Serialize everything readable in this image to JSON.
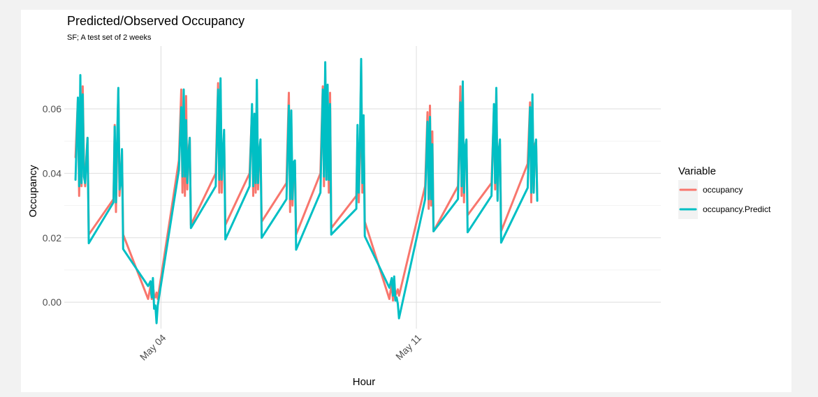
{
  "chart_data": {
    "type": "line",
    "title": "Predicted/Observed Occupancy",
    "subtitle": "SF; A test set of 2 weeks",
    "xlabel": "Hour",
    "ylabel": "Occupancy",
    "x_unit": "day of May",
    "xlim": [
      1.35,
      17.7
    ],
    "ylim": [
      -0.0082,
      0.0795
    ],
    "x_ticks": [
      {
        "value": 4,
        "label": "May 04"
      },
      {
        "value": 11,
        "label": "May 11"
      }
    ],
    "y_ticks": [
      {
        "value": 0.0,
        "label": "0.00"
      },
      {
        "value": 0.02,
        "label": "0.02"
      },
      {
        "value": 0.04,
        "label": "0.04"
      },
      {
        "value": 0.06,
        "label": "0.06"
      }
    ],
    "grid": true,
    "legend": {
      "title": "Variable",
      "position": "right"
    },
    "series": [
      {
        "name": "occupancy",
        "color": "#F8766D",
        "points": [
          [
            1.658,
            0.045
          ],
          [
            1.724,
            0.063
          ],
          [
            1.757,
            0.033
          ],
          [
            1.79,
            0.058
          ],
          [
            1.823,
            0.036
          ],
          [
            1.856,
            0.067
          ],
          [
            1.889,
            0.043
          ],
          [
            1.922,
            0.036
          ],
          [
            1.955,
            0.045
          ],
          [
            1.988,
            0.051
          ],
          [
            2.022,
            0.021
          ],
          [
            2.7,
            0.032
          ],
          [
            2.733,
            0.055
          ],
          [
            2.766,
            0.028
          ],
          [
            2.799,
            0.048
          ],
          [
            2.832,
            0.066
          ],
          [
            2.865,
            0.033
          ],
          [
            2.898,
            0.04
          ],
          [
            2.931,
            0.047
          ],
          [
            2.964,
            0.021
          ],
          [
            3.648,
            0.001
          ],
          [
            3.714,
            0.005
          ],
          [
            3.747,
            0.001
          ],
          [
            3.78,
            0.0055
          ],
          [
            3.813,
            0.002
          ],
          [
            3.846,
            0.0015
          ],
          [
            3.879,
            0.003
          ],
          [
            3.912,
            0.001
          ],
          [
            4.491,
            0.044
          ],
          [
            4.557,
            0.066
          ],
          [
            4.59,
            0.034
          ],
          [
            4.623,
            0.058
          ],
          [
            4.656,
            0.033
          ],
          [
            4.689,
            0.064
          ],
          [
            4.722,
            0.035
          ],
          [
            4.755,
            0.047
          ],
          [
            4.788,
            0.051
          ],
          [
            4.821,
            0.024
          ],
          [
            5.5,
            0.04
          ],
          [
            5.566,
            0.068
          ],
          [
            5.599,
            0.034
          ],
          [
            5.632,
            0.066
          ],
          [
            5.665,
            0.034
          ],
          [
            5.698,
            0.047
          ],
          [
            5.731,
            0.052
          ],
          [
            5.764,
            0.024
          ],
          [
            6.43,
            0.04
          ],
          [
            6.496,
            0.06
          ],
          [
            6.529,
            0.033
          ],
          [
            6.562,
            0.057
          ],
          [
            6.595,
            0.034
          ],
          [
            6.628,
            0.066
          ],
          [
            6.661,
            0.035
          ],
          [
            6.694,
            0.045
          ],
          [
            6.727,
            0.048
          ],
          [
            6.76,
            0.025
          ],
          [
            7.44,
            0.037
          ],
          [
            7.506,
            0.065
          ],
          [
            7.539,
            0.028
          ],
          [
            7.572,
            0.056
          ],
          [
            7.605,
            0.03
          ],
          [
            7.638,
            0.042
          ],
          [
            7.671,
            0.043
          ],
          [
            7.704,
            0.021
          ],
          [
            8.37,
            0.04
          ],
          [
            8.436,
            0.067
          ],
          [
            8.469,
            0.036
          ],
          [
            8.502,
            0.072
          ],
          [
            8.535,
            0.041
          ],
          [
            8.568,
            0.062
          ],
          [
            8.601,
            0.034
          ],
          [
            8.634,
            0.065
          ],
          [
            8.667,
            0.023
          ],
          [
            9.355,
            0.033
          ],
          [
            9.388,
            0.052
          ],
          [
            9.421,
            0.031
          ],
          [
            9.454,
            0.046
          ],
          [
            9.487,
            0.074
          ],
          [
            9.52,
            0.034
          ],
          [
            9.553,
            0.055
          ],
          [
            9.586,
            0.025
          ],
          [
            10.26,
            0.001
          ],
          [
            10.326,
            0.006
          ],
          [
            10.359,
            0.0005
          ],
          [
            10.392,
            0.0065
          ],
          [
            10.425,
            0.002
          ],
          [
            10.458,
            0.003
          ],
          [
            10.491,
            0.004
          ],
          [
            10.524,
            0.002
          ],
          [
            11.24,
            0.036
          ],
          [
            11.306,
            0.059
          ],
          [
            11.339,
            0.029
          ],
          [
            11.372,
            0.061
          ],
          [
            11.405,
            0.03
          ],
          [
            11.438,
            0.053
          ],
          [
            11.471,
            0.022
          ],
          [
            12.14,
            0.036
          ],
          [
            12.206,
            0.067
          ],
          [
            12.239,
            0.033
          ],
          [
            12.272,
            0.065
          ],
          [
            12.305,
            0.031
          ],
          [
            12.338,
            0.048
          ],
          [
            12.371,
            0.05
          ],
          [
            12.404,
            0.027
          ],
          [
            13.06,
            0.037
          ],
          [
            13.126,
            0.06
          ],
          [
            13.159,
            0.035
          ],
          [
            13.192,
            0.066
          ],
          [
            13.225,
            0.032
          ],
          [
            13.258,
            0.048
          ],
          [
            13.291,
            0.049
          ],
          [
            13.324,
            0.022
          ],
          [
            14.05,
            0.043
          ],
          [
            14.116,
            0.062
          ],
          [
            14.149,
            0.031
          ],
          [
            14.182,
            0.062
          ],
          [
            14.215,
            0.034
          ],
          [
            14.248,
            0.049
          ],
          [
            14.281,
            0.05
          ],
          [
            14.314,
            0.032
          ]
        ]
      },
      {
        "name": "occupancy.Predict",
        "color": "#00BFC4",
        "points": [
          [
            1.658,
            0.038
          ],
          [
            1.724,
            0.0635
          ],
          [
            1.757,
            0.036
          ],
          [
            1.79,
            0.0705
          ],
          [
            1.823,
            0.037
          ],
          [
            1.856,
            0.0645
          ],
          [
            1.889,
            0.039
          ],
          [
            1.922,
            0.037
          ],
          [
            1.955,
            0.044
          ],
          [
            1.988,
            0.051
          ],
          [
            2.022,
            0.0183
          ],
          [
            2.7,
            0.031
          ],
          [
            2.733,
            0.0545
          ],
          [
            2.766,
            0.031
          ],
          [
            2.799,
            0.0505
          ],
          [
            2.832,
            0.0665
          ],
          [
            2.865,
            0.035
          ],
          [
            2.898,
            0.037
          ],
          [
            2.931,
            0.0475
          ],
          [
            2.964,
            0.0165
          ],
          [
            3.648,
            0.005
          ],
          [
            3.714,
            0.0065
          ],
          [
            3.747,
            0.0015
          ],
          [
            3.78,
            0.0075
          ],
          [
            3.813,
            -0.002
          ],
          [
            3.846,
            -0.001
          ],
          [
            3.879,
            -0.0065
          ],
          [
            3.912,
            -0.001
          ],
          [
            4.491,
            0.041
          ],
          [
            4.557,
            0.0605
          ],
          [
            4.59,
            0.039
          ],
          [
            4.623,
            0.066
          ],
          [
            4.656,
            0.039
          ],
          [
            4.689,
            0.0565
          ],
          [
            4.722,
            0.037
          ],
          [
            4.755,
            0.046
          ],
          [
            4.788,
            0.051
          ],
          [
            4.821,
            0.023
          ],
          [
            5.5,
            0.036
          ],
          [
            5.566,
            0.066
          ],
          [
            5.599,
            0.038
          ],
          [
            5.632,
            0.0695
          ],
          [
            5.665,
            0.038
          ],
          [
            5.698,
            0.0465
          ],
          [
            5.731,
            0.0535
          ],
          [
            5.764,
            0.0195
          ],
          [
            6.43,
            0.036
          ],
          [
            6.496,
            0.0615
          ],
          [
            6.529,
            0.036
          ],
          [
            6.562,
            0.0585
          ],
          [
            6.595,
            0.037
          ],
          [
            6.628,
            0.069
          ],
          [
            6.661,
            0.037
          ],
          [
            6.694,
            0.0465
          ],
          [
            6.727,
            0.0505
          ],
          [
            6.76,
            0.02
          ],
          [
            7.44,
            0.032
          ],
          [
            7.506,
            0.061
          ],
          [
            7.539,
            0.032
          ],
          [
            7.572,
            0.0595
          ],
          [
            7.605,
            0.032
          ],
          [
            7.638,
            0.0435
          ],
          [
            7.671,
            0.044
          ],
          [
            7.704,
            0.0163
          ],
          [
            8.37,
            0.034
          ],
          [
            8.436,
            0.066
          ],
          [
            8.469,
            0.039
          ],
          [
            8.502,
            0.0745
          ],
          [
            8.535,
            0.038
          ],
          [
            8.568,
            0.0675
          ],
          [
            8.601,
            0.038
          ],
          [
            8.634,
            0.0615
          ],
          [
            8.667,
            0.021
          ],
          [
            9.355,
            0.029
          ],
          [
            9.388,
            0.055
          ],
          [
            9.421,
            0.034
          ],
          [
            9.454,
            0.0495
          ],
          [
            9.487,
            0.0755
          ],
          [
            9.52,
            0.037
          ],
          [
            9.553,
            0.058
          ],
          [
            9.586,
            0.0205
          ],
          [
            10.26,
            0.0045
          ],
          [
            10.326,
            0.0075
          ],
          [
            10.359,
            0.002
          ],
          [
            10.392,
            0.008
          ],
          [
            10.425,
            0.0005
          ],
          [
            10.458,
            0.0015
          ],
          [
            10.491,
            -0.0005
          ],
          [
            10.524,
            -0.005
          ],
          [
            11.24,
            0.032
          ],
          [
            11.306,
            0.056
          ],
          [
            11.339,
            0.032
          ],
          [
            11.372,
            0.0575
          ],
          [
            11.405,
            0.032
          ],
          [
            11.438,
            0.049
          ],
          [
            11.471,
            0.022
          ],
          [
            12.14,
            0.032
          ],
          [
            12.206,
            0.062
          ],
          [
            12.239,
            0.036
          ],
          [
            12.272,
            0.0685
          ],
          [
            12.305,
            0.034
          ],
          [
            12.338,
            0.048
          ],
          [
            12.371,
            0.0505
          ],
          [
            12.404,
            0.0217
          ],
          [
            13.06,
            0.033
          ],
          [
            13.126,
            0.0615
          ],
          [
            13.159,
            0.037
          ],
          [
            13.192,
            0.0665
          ],
          [
            13.225,
            0.0315
          ],
          [
            13.258,
            0.047
          ],
          [
            13.291,
            0.0505
          ],
          [
            13.324,
            0.0185
          ],
          [
            14.05,
            0.0355
          ],
          [
            14.116,
            0.0605
          ],
          [
            14.149,
            0.034
          ],
          [
            14.182,
            0.0645
          ],
          [
            14.215,
            0.034
          ],
          [
            14.248,
            0.0475
          ],
          [
            14.281,
            0.0505
          ],
          [
            14.314,
            0.0315
          ]
        ]
      }
    ]
  }
}
